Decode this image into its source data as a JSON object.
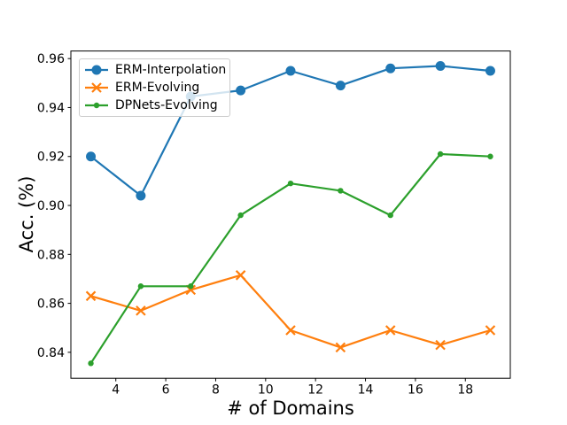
{
  "chart_data": {
    "type": "line",
    "title": "",
    "xlabel": "# of Domains",
    "ylabel": "Acc. (%)",
    "x": [
      3,
      5,
      7,
      9,
      11,
      13,
      15,
      17,
      19
    ],
    "series": [
      {
        "name": "ERM-Interpolation",
        "color": "#1f77b4",
        "marker": "circle",
        "marker_size": 5.5,
        "line_width": 2.2,
        "values": [
          0.92,
          0.904,
          0.9445,
          0.947,
          0.955,
          0.949,
          0.956,
          0.957,
          0.955
        ]
      },
      {
        "name": "ERM-Evolving",
        "color": "#ff7f0e",
        "marker": "x",
        "marker_size": 5,
        "line_width": 2.2,
        "values": [
          0.863,
          0.857,
          0.8655,
          0.8715,
          0.849,
          0.842,
          0.849,
          0.843,
          0.849
        ]
      },
      {
        "name": "DPNets-Evolving",
        "color": "#2ca02c",
        "marker": "dot",
        "marker_size": 3.2,
        "line_width": 2.2,
        "values": [
          0.8355,
          0.867,
          0.867,
          0.896,
          0.909,
          0.906,
          0.896,
          0.921,
          0.92
        ]
      }
    ],
    "xlim": [
      2.2,
      19.8
    ],
    "ylim": [
      0.8294,
      0.9631
    ],
    "x_ticks": [
      {
        "v": 4,
        "label": "4"
      },
      {
        "v": 6,
        "label": "6"
      },
      {
        "v": 8,
        "label": "8"
      },
      {
        "v": 10,
        "label": "10"
      },
      {
        "v": 12,
        "label": "12"
      },
      {
        "v": 14,
        "label": "14"
      },
      {
        "v": 16,
        "label": "16"
      },
      {
        "v": 18,
        "label": "18"
      }
    ],
    "y_ticks": [
      {
        "v": 0.84,
        "label": "0.84"
      },
      {
        "v": 0.86,
        "label": "0.86"
      },
      {
        "v": 0.88,
        "label": "0.88"
      },
      {
        "v": 0.9,
        "label": "0.90"
      },
      {
        "v": 0.92,
        "label": "0.92"
      },
      {
        "v": 0.94,
        "label": "0.94"
      },
      {
        "v": 0.96,
        "label": "0.96"
      }
    ],
    "grid": false,
    "legend_position": "upper left"
  },
  "colors": {
    "spine": "#000000",
    "tick": "#000000",
    "text": "#000000",
    "legend_border": "#cccccc",
    "background": "#ffffff"
  }
}
